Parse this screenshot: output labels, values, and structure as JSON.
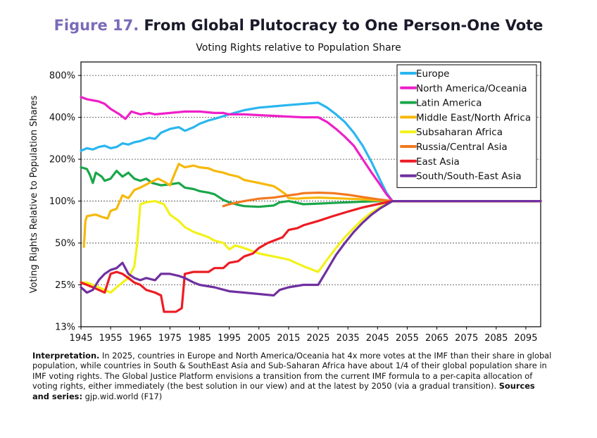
{
  "figure": {
    "number": "Figure 17.",
    "title": "From Global Plutocracy to One Person-One Vote",
    "subtitle": "Voting Rights relative to Population Share"
  },
  "note": {
    "lead": "Interpretation.",
    "body": " In 2025, countries in Europe and North America/Oceania hat 4x more votes at the IMF than their share in global population, while countries in South & SouthEast Asia and Sub-Saharan Africa have about 1/4 of their global population share in IMF voting rights. The Global Justice Platform envisions a transition from the current IMF formula to a per-capita allocation of voting rights, either immediately (the best solution in our view) and at the latest by 2050 (via a gradual transition). ",
    "sources_label": "Sources and series:",
    "sources": "gjp.wid.world (F17)"
  },
  "chart_data": {
    "type": "line",
    "ylabel": "Voting Rights Relative to Population Shares",
    "xlim": [
      1945,
      2100
    ],
    "ylim": [
      0.125,
      10
    ],
    "y_scale": "log2",
    "x_ticks": [
      1945,
      1955,
      1965,
      1975,
      1985,
      1995,
      2005,
      2015,
      2025,
      2035,
      2045,
      2055,
      2065,
      2075,
      2085,
      2095
    ],
    "y_ticks": [
      {
        "v": 0.125,
        "label": "13%"
      },
      {
        "v": 0.25,
        "label": "25%"
      },
      {
        "v": 0.5,
        "label": "50%"
      },
      {
        "v": 1,
        "label": "100%"
      },
      {
        "v": 2,
        "label": "200%"
      },
      {
        "v": 4,
        "label": "400%"
      },
      {
        "v": 8,
        "label": "800%"
      }
    ],
    "grid": "dashed horizontal",
    "legend_position": "top-right",
    "series": [
      {
        "name": "Europe",
        "color": "#29b6f0",
        "points": [
          [
            1945,
            2.3
          ],
          [
            1947,
            2.4
          ],
          [
            1949,
            2.35
          ],
          [
            1951,
            2.45
          ],
          [
            1953,
            2.5
          ],
          [
            1955,
            2.4
          ],
          [
            1957,
            2.45
          ],
          [
            1959,
            2.6
          ],
          [
            1961,
            2.55
          ],
          [
            1963,
            2.65
          ],
          [
            1965,
            2.7
          ],
          [
            1968,
            2.85
          ],
          [
            1970,
            2.8
          ],
          [
            1972,
            3.1
          ],
          [
            1975,
            3.3
          ],
          [
            1978,
            3.4
          ],
          [
            1980,
            3.2
          ],
          [
            1983,
            3.4
          ],
          [
            1985,
            3.6
          ],
          [
            1988,
            3.8
          ],
          [
            1990,
            3.9
          ],
          [
            1995,
            4.2
          ],
          [
            2000,
            4.5
          ],
          [
            2005,
            4.7
          ],
          [
            2010,
            4.8
          ],
          [
            2015,
            4.9
          ],
          [
            2020,
            5.0
          ],
          [
            2025,
            5.1
          ],
          [
            2028,
            4.7
          ],
          [
            2031,
            4.2
          ],
          [
            2034,
            3.7
          ],
          [
            2037,
            3.1
          ],
          [
            2040,
            2.5
          ],
          [
            2043,
            1.9
          ],
          [
            2046,
            1.4
          ],
          [
            2048,
            1.15
          ],
          [
            2050,
            1.0
          ],
          [
            2100,
            1.0
          ]
        ]
      },
      {
        "name": "North America/Oceania",
        "color": "#ee20c8",
        "points": [
          [
            1945,
            5.6
          ],
          [
            1947,
            5.4
          ],
          [
            1949,
            5.3
          ],
          [
            1951,
            5.2
          ],
          [
            1953,
            5.0
          ],
          [
            1955,
            4.6
          ],
          [
            1958,
            4.2
          ],
          [
            1960,
            3.9
          ],
          [
            1962,
            4.4
          ],
          [
            1965,
            4.2
          ],
          [
            1968,
            4.3
          ],
          [
            1970,
            4.2
          ],
          [
            1975,
            4.3
          ],
          [
            1980,
            4.4
          ],
          [
            1985,
            4.4
          ],
          [
            1990,
            4.3
          ],
          [
            1993,
            4.3
          ],
          [
            1995,
            4.2
          ],
          [
            2000,
            4.2
          ],
          [
            2005,
            4.15
          ],
          [
            2010,
            4.1
          ],
          [
            2015,
            4.05
          ],
          [
            2020,
            4.0
          ],
          [
            2025,
            4.0
          ],
          [
            2028,
            3.7
          ],
          [
            2031,
            3.3
          ],
          [
            2034,
            2.9
          ],
          [
            2037,
            2.5
          ],
          [
            2040,
            2.0
          ],
          [
            2043,
            1.6
          ],
          [
            2046,
            1.3
          ],
          [
            2048,
            1.12
          ],
          [
            2050,
            1.0
          ],
          [
            2100,
            1.0
          ]
        ]
      },
      {
        "name": "Latin America",
        "color": "#1aa64a",
        "points": [
          [
            1945,
            1.75
          ],
          [
            1947,
            1.7
          ],
          [
            1948,
            1.55
          ],
          [
            1949,
            1.35
          ],
          [
            1950,
            1.6
          ],
          [
            1952,
            1.5
          ],
          [
            1953,
            1.4
          ],
          [
            1955,
            1.45
          ],
          [
            1957,
            1.65
          ],
          [
            1959,
            1.5
          ],
          [
            1961,
            1.6
          ],
          [
            1963,
            1.45
          ],
          [
            1965,
            1.4
          ],
          [
            1967,
            1.45
          ],
          [
            1969,
            1.35
          ],
          [
            1972,
            1.3
          ],
          [
            1975,
            1.32
          ],
          [
            1978,
            1.35
          ],
          [
            1980,
            1.25
          ],
          [
            1983,
            1.22
          ],
          [
            1985,
            1.18
          ],
          [
            1988,
            1.15
          ],
          [
            1990,
            1.12
          ],
          [
            1993,
            1.02
          ],
          [
            1995,
            0.98
          ],
          [
            1998,
            0.94
          ],
          [
            2000,
            0.92
          ],
          [
            2005,
            0.91
          ],
          [
            2010,
            0.93
          ],
          [
            2012,
            0.98
          ],
          [
            2015,
            1.0
          ],
          [
            2018,
            0.97
          ],
          [
            2020,
            0.95
          ],
          [
            2025,
            0.96
          ],
          [
            2030,
            0.97
          ],
          [
            2035,
            0.98
          ],
          [
            2040,
            0.99
          ],
          [
            2045,
            1.0
          ],
          [
            2050,
            1.0
          ],
          [
            2100,
            1.0
          ]
        ]
      },
      {
        "name": "Middle East/North Africa",
        "color": "#f6b80a",
        "points": [
          [
            1946,
            0.47
          ],
          [
            1946.5,
            0.72
          ],
          [
            1947,
            0.78
          ],
          [
            1950,
            0.8
          ],
          [
            1952,
            0.77
          ],
          [
            1954,
            0.75
          ],
          [
            1955,
            0.85
          ],
          [
            1957,
            0.88
          ],
          [
            1959,
            1.1
          ],
          [
            1961,
            1.05
          ],
          [
            1963,
            1.2
          ],
          [
            1965,
            1.25
          ],
          [
            1968,
            1.35
          ],
          [
            1971,
            1.45
          ],
          [
            1973,
            1.38
          ],
          [
            1975,
            1.3
          ],
          [
            1977,
            1.65
          ],
          [
            1978,
            1.85
          ],
          [
            1980,
            1.75
          ],
          [
            1983,
            1.8
          ],
          [
            1985,
            1.75
          ],
          [
            1988,
            1.72
          ],
          [
            1990,
            1.65
          ],
          [
            1993,
            1.6
          ],
          [
            1995,
            1.55
          ],
          [
            1998,
            1.5
          ],
          [
            2000,
            1.42
          ],
          [
            2005,
            1.35
          ],
          [
            2010,
            1.28
          ],
          [
            2012,
            1.2
          ],
          [
            2014,
            1.12
          ],
          [
            2015,
            1.05
          ],
          [
            2018,
            1.04
          ],
          [
            2020,
            1.05
          ],
          [
            2025,
            1.06
          ],
          [
            2030,
            1.05
          ],
          [
            2035,
            1.04
          ],
          [
            2040,
            1.03
          ],
          [
            2045,
            1.01
          ],
          [
            2050,
            1.0
          ],
          [
            2100,
            1.0
          ]
        ]
      },
      {
        "name": "Subsaharan Africa",
        "color": "#f2f21a",
        "points": [
          [
            1945,
            0.26
          ],
          [
            1947,
            0.26
          ],
          [
            1949,
            0.25
          ],
          [
            1951,
            0.24
          ],
          [
            1953,
            0.23
          ],
          [
            1955,
            0.22
          ],
          [
            1957,
            0.24
          ],
          [
            1959,
            0.26
          ],
          [
            1961,
            0.28
          ],
          [
            1963,
            0.34
          ],
          [
            1964,
            0.5
          ],
          [
            1965,
            0.95
          ],
          [
            1967,
            0.98
          ],
          [
            1970,
            1.0
          ],
          [
            1973,
            0.95
          ],
          [
            1975,
            0.8
          ],
          [
            1978,
            0.72
          ],
          [
            1980,
            0.65
          ],
          [
            1983,
            0.6
          ],
          [
            1985,
            0.58
          ],
          [
            1988,
            0.55
          ],
          [
            1990,
            0.52
          ],
          [
            1993,
            0.5
          ],
          [
            1995,
            0.45
          ],
          [
            1997,
            0.48
          ],
          [
            2000,
            0.46
          ],
          [
            2005,
            0.42
          ],
          [
            2010,
            0.4
          ],
          [
            2015,
            0.38
          ],
          [
            2020,
            0.34
          ],
          [
            2025,
            0.31
          ],
          [
            2028,
            0.38
          ],
          [
            2031,
            0.46
          ],
          [
            2034,
            0.55
          ],
          [
            2037,
            0.64
          ],
          [
            2040,
            0.74
          ],
          [
            2043,
            0.83
          ],
          [
            2046,
            0.91
          ],
          [
            2050,
            1.0
          ],
          [
            2100,
            1.0
          ]
        ]
      },
      {
        "name": "Russia/Central Asia",
        "color": "#f3781e",
        "points": [
          [
            1993,
            0.92
          ],
          [
            1995,
            0.95
          ],
          [
            1998,
            0.98
          ],
          [
            2000,
            1.0
          ],
          [
            2005,
            1.04
          ],
          [
            2010,
            1.06
          ],
          [
            2015,
            1.1
          ],
          [
            2018,
            1.12
          ],
          [
            2020,
            1.14
          ],
          [
            2025,
            1.15
          ],
          [
            2030,
            1.14
          ],
          [
            2035,
            1.11
          ],
          [
            2040,
            1.07
          ],
          [
            2045,
            1.03
          ],
          [
            2050,
            1.0
          ],
          [
            2100,
            1.0
          ]
        ]
      },
      {
        "name": "East Asia",
        "color": "#ed1c24",
        "points": [
          [
            1945,
            0.26
          ],
          [
            1947,
            0.25
          ],
          [
            1949,
            0.24
          ],
          [
            1951,
            0.23
          ],
          [
            1953,
            0.22
          ],
          [
            1955,
            0.3
          ],
          [
            1957,
            0.31
          ],
          [
            1959,
            0.3
          ],
          [
            1961,
            0.28
          ],
          [
            1963,
            0.26
          ],
          [
            1965,
            0.25
          ],
          [
            1967,
            0.23
          ],
          [
            1970,
            0.22
          ],
          [
            1972,
            0.21
          ],
          [
            1973,
            0.16
          ],
          [
            1975,
            0.16
          ],
          [
            1977,
            0.16
          ],
          [
            1979,
            0.17
          ],
          [
            1980,
            0.3
          ],
          [
            1983,
            0.31
          ],
          [
            1985,
            0.31
          ],
          [
            1988,
            0.31
          ],
          [
            1990,
            0.33
          ],
          [
            1993,
            0.33
          ],
          [
            1995,
            0.36
          ],
          [
            1998,
            0.37
          ],
          [
            2000,
            0.4
          ],
          [
            2003,
            0.42
          ],
          [
            2005,
            0.46
          ],
          [
            2008,
            0.5
          ],
          [
            2010,
            0.52
          ],
          [
            2013,
            0.55
          ],
          [
            2015,
            0.62
          ],
          [
            2018,
            0.64
          ],
          [
            2020,
            0.67
          ],
          [
            2025,
            0.72
          ],
          [
            2030,
            0.78
          ],
          [
            2035,
            0.84
          ],
          [
            2040,
            0.9
          ],
          [
            2045,
            0.95
          ],
          [
            2050,
            1.0
          ],
          [
            2100,
            1.0
          ]
        ]
      },
      {
        "name": "South/South-East Asia",
        "color": "#7030a0",
        "points": [
          [
            1945,
            0.24
          ],
          [
            1947,
            0.22
          ],
          [
            1949,
            0.23
          ],
          [
            1951,
            0.27
          ],
          [
            1953,
            0.3
          ],
          [
            1955,
            0.32
          ],
          [
            1957,
            0.33
          ],
          [
            1959,
            0.36
          ],
          [
            1961,
            0.3
          ],
          [
            1963,
            0.28
          ],
          [
            1965,
            0.27
          ],
          [
            1967,
            0.28
          ],
          [
            1970,
            0.27
          ],
          [
            1972,
            0.3
          ],
          [
            1975,
            0.3
          ],
          [
            1978,
            0.29
          ],
          [
            1980,
            0.28
          ],
          [
            1983,
            0.26
          ],
          [
            1985,
            0.25
          ],
          [
            1990,
            0.24
          ],
          [
            1995,
            0.225
          ],
          [
            2000,
            0.22
          ],
          [
            2005,
            0.215
          ],
          [
            2010,
            0.21
          ],
          [
            2012,
            0.23
          ],
          [
            2015,
            0.24
          ],
          [
            2020,
            0.25
          ],
          [
            2025,
            0.25
          ],
          [
            2028,
            0.32
          ],
          [
            2031,
            0.41
          ],
          [
            2034,
            0.5
          ],
          [
            2037,
            0.6
          ],
          [
            2040,
            0.7
          ],
          [
            2043,
            0.8
          ],
          [
            2046,
            0.89
          ],
          [
            2050,
            1.0
          ],
          [
            2100,
            1.0
          ]
        ]
      }
    ]
  }
}
